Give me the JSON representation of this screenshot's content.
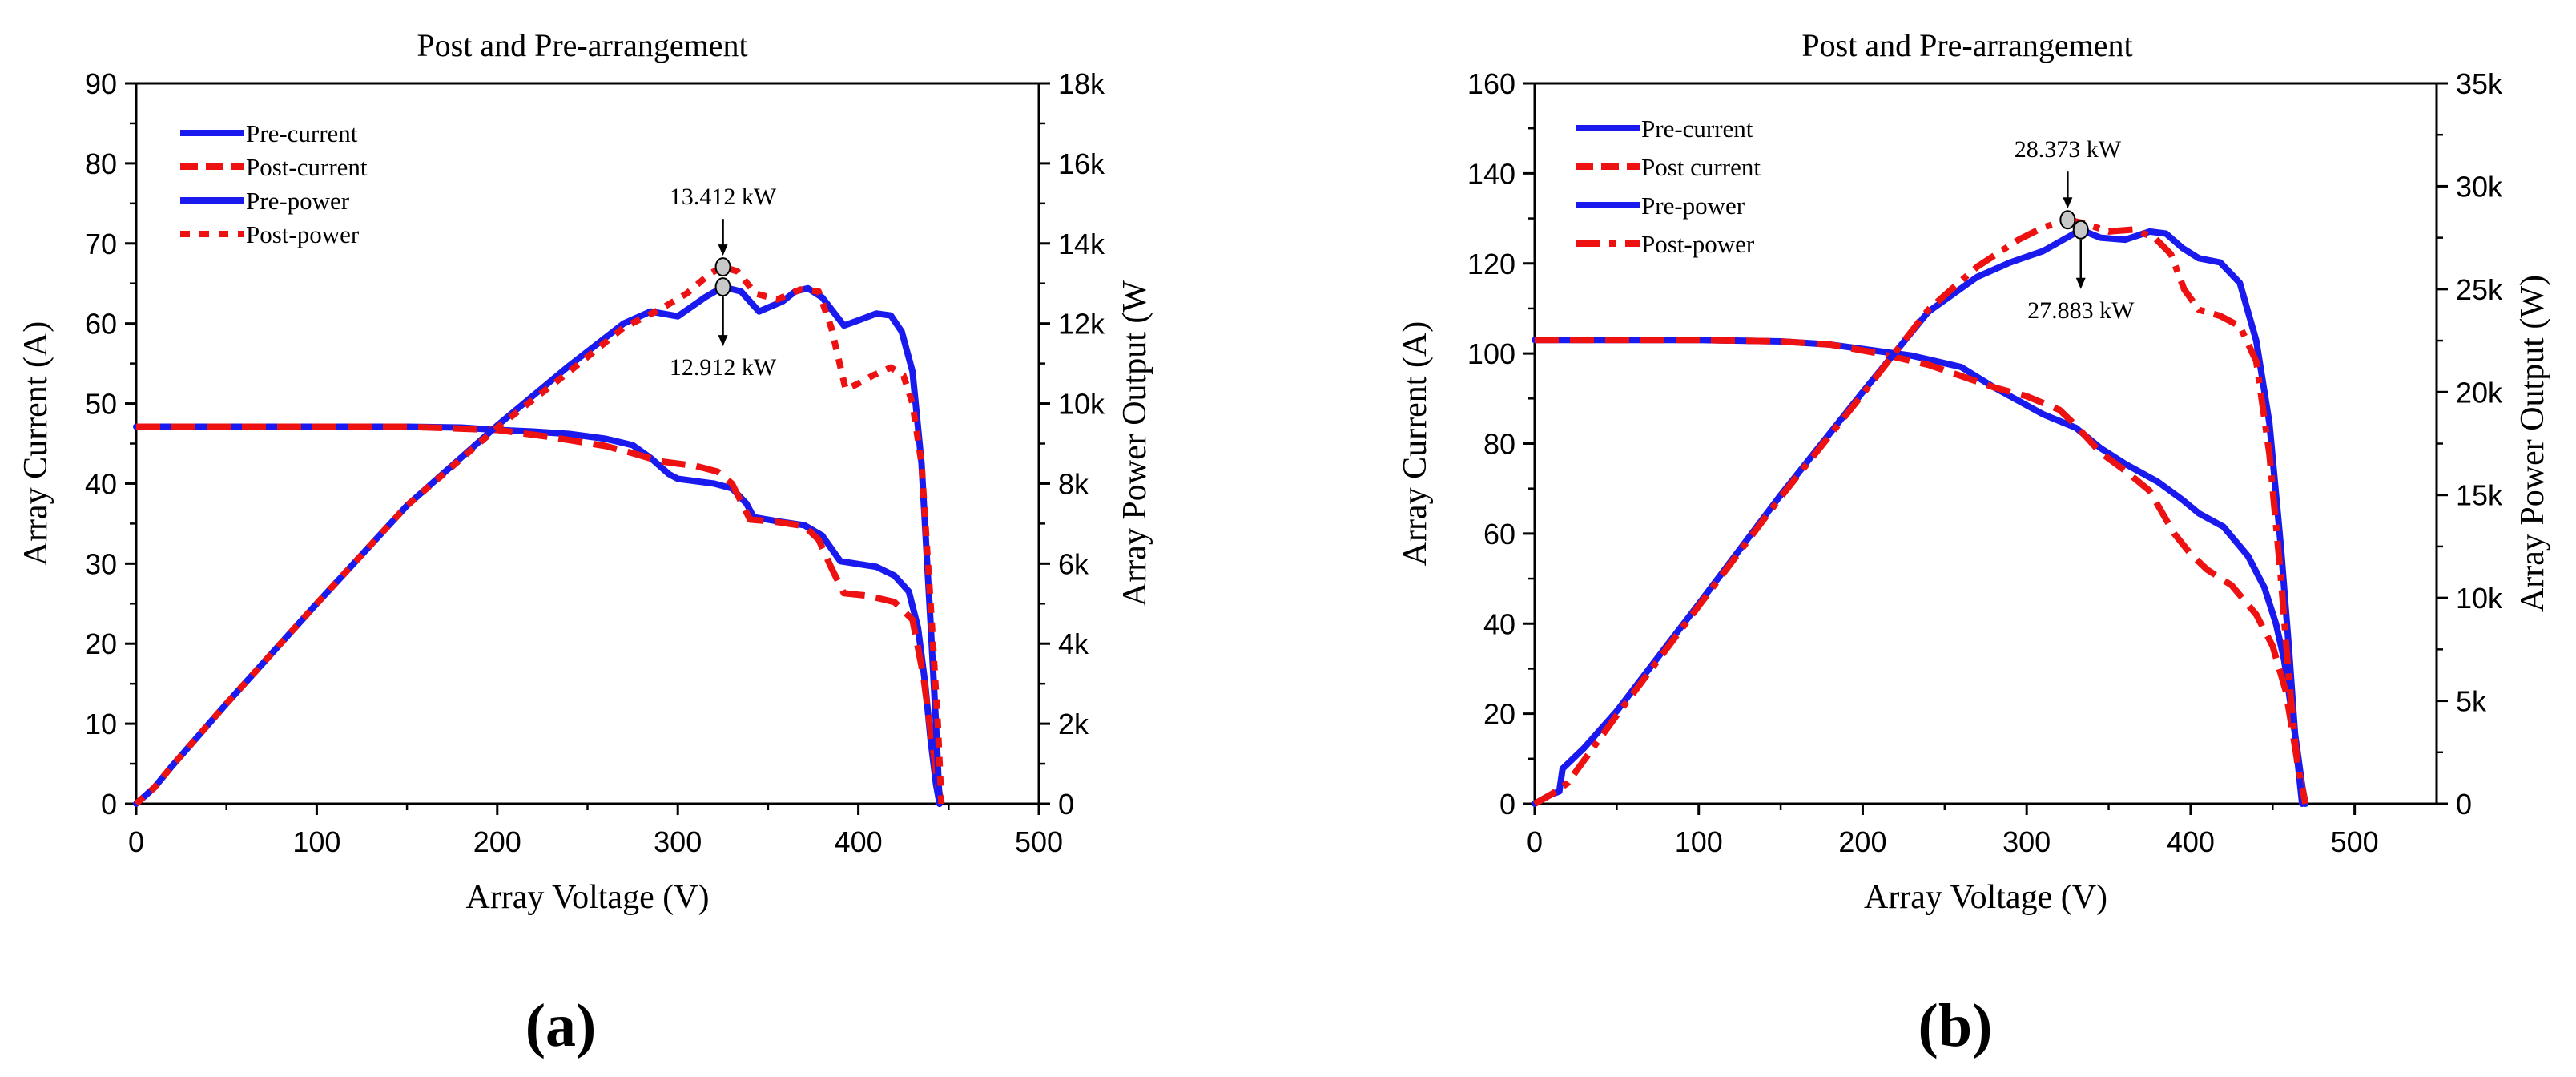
{
  "colors": {
    "pre": "#1a1aee",
    "post": "#ee1111",
    "axis": "#000000",
    "marker_fill": "#c8c8c8"
  },
  "chart_data": [
    {
      "type": "line",
      "panel_label": "(a)",
      "title": "Post and Pre-arrangement",
      "xlabel": "Array Voltage (V)",
      "ylabel": "Array Current (A)",
      "y2label": "Array Power Output (W",
      "xlim": [
        0,
        500
      ],
      "ylim": [
        0,
        90
      ],
      "y2lim": [
        0,
        18000
      ],
      "xticks": [
        "0",
        "100",
        "200",
        "300",
        "400",
        "500"
      ],
      "yticks": [
        "0",
        "10",
        "20",
        "30",
        "40",
        "50",
        "60",
        "70",
        "80",
        "90"
      ],
      "y2ticks": [
        "0",
        "2k",
        "4k",
        "6k",
        "8k",
        "10k",
        "12k",
        "14k",
        "16k",
        "18k"
      ],
      "legend_position": "top-left",
      "series": [
        {
          "name": "Pre-current",
          "axis": "left",
          "color": "pre",
          "dash": "solid",
          "points": [
            [
              0,
              47.1
            ],
            [
              50,
              47.1
            ],
            [
              100,
              47.1
            ],
            [
              150,
              47.1
            ],
            [
              180,
              47.0
            ],
            [
              200,
              46.7
            ],
            [
              220,
              46.5
            ],
            [
              240,
              46.2
            ],
            [
              260,
              45.6
            ],
            [
              275,
              44.8
            ],
            [
              285,
              43.2
            ],
            [
              295,
              41.2
            ],
            [
              300,
              40.6
            ],
            [
              320,
              40.0
            ],
            [
              330,
              39.4
            ],
            [
              338,
              37.5
            ],
            [
              342,
              35.8
            ],
            [
              355,
              35.3
            ],
            [
              370,
              34.8
            ],
            [
              380,
              33.5
            ],
            [
              390,
              30.3
            ],
            [
              410,
              29.6
            ],
            [
              420,
              28.5
            ],
            [
              428,
              26.5
            ],
            [
              433,
              22.0
            ],
            [
              437,
              15.0
            ],
            [
              440,
              8.0
            ],
            [
              443,
              2.5
            ],
            [
              445,
              0
            ]
          ]
        },
        {
          "name": "Post-current",
          "axis": "left",
          "color": "post",
          "dash": "dashed",
          "points": [
            [
              0,
              47.1
            ],
            [
              50,
              47.1
            ],
            [
              100,
              47.1
            ],
            [
              150,
              47.1
            ],
            [
              200,
              46.7
            ],
            [
              230,
              45.8
            ],
            [
              260,
              44.7
            ],
            [
              275,
              43.8
            ],
            [
              290,
              42.8
            ],
            [
              310,
              42.2
            ],
            [
              322,
              41.5
            ],
            [
              330,
              40.0
            ],
            [
              340,
              35.5
            ],
            [
              355,
              35.2
            ],
            [
              370,
              34.7
            ],
            [
              378,
              33.0
            ],
            [
              385,
              29.5
            ],
            [
              392,
              26.3
            ],
            [
              405,
              26.0
            ],
            [
              420,
              25.2
            ],
            [
              430,
              23.0
            ],
            [
              436,
              16.0
            ],
            [
              440,
              9.0
            ],
            [
              444,
              2.5
            ],
            [
              446,
              0
            ]
          ]
        },
        {
          "name": "Pre-power",
          "axis": "right",
          "color": "pre",
          "dash": "solid",
          "points": [
            [
              0,
              0
            ],
            [
              10,
              400
            ],
            [
              20,
              950
            ],
            [
              50,
              2500
            ],
            [
              100,
              5000
            ],
            [
              150,
              7450
            ],
            [
              200,
              9450
            ],
            [
              240,
              10950
            ],
            [
              270,
              12000
            ],
            [
              285,
              12300
            ],
            [
              300,
              12180
            ],
            [
              315,
              12650
            ],
            [
              325,
              12912
            ],
            [
              335,
              12800
            ],
            [
              345,
              12300
            ],
            [
              358,
              12550
            ],
            [
              365,
              12800
            ],
            [
              372,
              12880
            ],
            [
              380,
              12650
            ],
            [
              392,
              11950
            ],
            [
              400,
              12080
            ],
            [
              410,
              12250
            ],
            [
              418,
              12200
            ],
            [
              424,
              11800
            ],
            [
              430,
              10800
            ],
            [
              435,
              8500
            ],
            [
              440,
              4500
            ],
            [
              443,
              2000
            ],
            [
              445,
              0
            ]
          ]
        },
        {
          "name": "Post-power",
          "axis": "right",
          "color": "post",
          "dash": "dotted",
          "points": [
            [
              0,
              0
            ],
            [
              10,
              400
            ],
            [
              20,
              950
            ],
            [
              50,
              2500
            ],
            [
              100,
              5000
            ],
            [
              150,
              7450
            ],
            [
              200,
              9400
            ],
            [
              240,
              10800
            ],
            [
              270,
              11900
            ],
            [
              290,
              12350
            ],
            [
              305,
              12750
            ],
            [
              318,
              13250
            ],
            [
              325,
              13412
            ],
            [
              333,
              13300
            ],
            [
              343,
              12750
            ],
            [
              355,
              12600
            ],
            [
              368,
              12850
            ],
            [
              378,
              12800
            ],
            [
              385,
              11900
            ],
            [
              393,
              10350
            ],
            [
              400,
              10500
            ],
            [
              408,
              10700
            ],
            [
              418,
              10900
            ],
            [
              425,
              10700
            ],
            [
              430,
              10000
            ],
            [
              435,
              8500
            ],
            [
              440,
              5000
            ],
            [
              444,
              2000
            ],
            [
              446,
              0
            ]
          ]
        }
      ],
      "annotations": [
        {
          "text": "13.412 kW",
          "x": 325,
          "y2": 13412,
          "series": "Post-power",
          "label_side": "above"
        },
        {
          "text": "12.912 kW",
          "x": 325,
          "y2": 12912,
          "series": "Pre-power",
          "label_side": "below"
        }
      ]
    },
    {
      "type": "line",
      "panel_label": "(b)",
      "title": "Post and Pre-arrangement",
      "xlabel": "Array Voltage (V)",
      "ylabel": "Array Current (A)",
      "y2label": "Array Power Output (W)",
      "xlim": [
        0,
        550
      ],
      "ylim": [
        0,
        160
      ],
      "y2lim": [
        0,
        35000
      ],
      "xticks": [
        "0",
        "100",
        "200",
        "300",
        "400",
        "500"
      ],
      "yticks": [
        "0",
        "20",
        "40",
        "60",
        "80",
        "100",
        "120",
        "140",
        "160"
      ],
      "y2ticks": [
        "0",
        "5k",
        "10k",
        "15k",
        "20k",
        "25k",
        "30k",
        "35k"
      ],
      "legend_position": "top-left",
      "series": [
        {
          "name": "Pre-current",
          "axis": "left",
          "color": "pre",
          "dash": "solid",
          "points": [
            [
              0,
              103
            ],
            [
              50,
              103
            ],
            [
              100,
              103
            ],
            [
              150,
              102.7
            ],
            [
              180,
              102
            ],
            [
              200,
              101
            ],
            [
              230,
              99.5
            ],
            [
              260,
              97
            ],
            [
              280,
              92.5
            ],
            [
              295,
              89.5
            ],
            [
              310,
              86.5
            ],
            [
              330,
              83.5
            ],
            [
              345,
              79
            ],
            [
              360,
              75.5
            ],
            [
              380,
              71.5
            ],
            [
              395,
              67.5
            ],
            [
              405,
              64.5
            ],
            [
              420,
              61.5
            ],
            [
              435,
              55
            ],
            [
              445,
              48
            ],
            [
              452,
              40
            ],
            [
              457,
              32
            ],
            [
              461,
              22
            ],
            [
              465,
              12
            ],
            [
              468,
              4
            ],
            [
              470,
              0
            ]
          ]
        },
        {
          "name": "Post current",
          "axis": "left",
          "color": "post",
          "dash": "dashed",
          "points": [
            [
              0,
              103
            ],
            [
              50,
              103
            ],
            [
              100,
              103
            ],
            [
              150,
              102.7
            ],
            [
              180,
              102
            ],
            [
              210,
              100
            ],
            [
              240,
              97.5
            ],
            [
              260,
              95
            ],
            [
              280,
              92.5
            ],
            [
              300,
              90.5
            ],
            [
              320,
              87.5
            ],
            [
              330,
              84
            ],
            [
              345,
              78
            ],
            [
              360,
              74
            ],
            [
              375,
              69.5
            ],
            [
              390,
              60
            ],
            [
              400,
              55.5
            ],
            [
              410,
              52
            ],
            [
              425,
              48.5
            ],
            [
              440,
              42
            ],
            [
              450,
              35
            ],
            [
              458,
              25
            ],
            [
              463,
              14
            ],
            [
              467,
              5
            ],
            [
              470,
              0
            ]
          ]
        },
        {
          "name": "Pre-power",
          "axis": "right",
          "color": "pre",
          "dash": "solid",
          "points": [
            [
              0,
              0
            ],
            [
              10,
              450
            ],
            [
              15,
              600
            ],
            [
              17,
              1700
            ],
            [
              30,
              2700
            ],
            [
              50,
              4500
            ],
            [
              100,
              9700
            ],
            [
              150,
              15000
            ],
            [
              200,
              20000
            ],
            [
              240,
              23900
            ],
            [
              270,
              25600
            ],
            [
              290,
              26300
            ],
            [
              310,
              26850
            ],
            [
              320,
              27300
            ],
            [
              333,
              27883
            ],
            [
              345,
              27500
            ],
            [
              360,
              27400
            ],
            [
              375,
              27800
            ],
            [
              385,
              27700
            ],
            [
              395,
              27000
            ],
            [
              405,
              26500
            ],
            [
              418,
              26300
            ],
            [
              430,
              25300
            ],
            [
              440,
              22500
            ],
            [
              448,
              18500
            ],
            [
              455,
              12500
            ],
            [
              460,
              7500
            ],
            [
              464,
              3000
            ],
            [
              468,
              0
            ]
          ]
        },
        {
          "name": "Post-power",
          "axis": "right",
          "color": "post",
          "dash": "dashdot",
          "points": [
            [
              0,
              0
            ],
            [
              10,
              450
            ],
            [
              20,
              1000
            ],
            [
              50,
              4300
            ],
            [
              100,
              9600
            ],
            [
              150,
              14900
            ],
            [
              200,
              19900
            ],
            [
              240,
              24000
            ],
            [
              270,
              26100
            ],
            [
              295,
              27400
            ],
            [
              310,
              28000
            ],
            [
              325,
              28373
            ],
            [
              335,
              28200
            ],
            [
              350,
              27800
            ],
            [
              365,
              27900
            ],
            [
              378,
              27500
            ],
            [
              388,
              26700
            ],
            [
              396,
              25000
            ],
            [
              405,
              24000
            ],
            [
              418,
              23700
            ],
            [
              430,
              23200
            ],
            [
              440,
              21500
            ],
            [
              448,
              17000
            ],
            [
              455,
              11000
            ],
            [
              460,
              6000
            ],
            [
              465,
              2000
            ],
            [
              470,
              0
            ]
          ]
        }
      ],
      "annotations": [
        {
          "text": "28.373 kW",
          "x": 325,
          "y2": 28373,
          "series": "Post-power",
          "label_side": "above"
        },
        {
          "text": "27.883 kW",
          "x": 333,
          "y2": 27883,
          "series": "Pre-power",
          "label_side": "below"
        }
      ]
    }
  ]
}
